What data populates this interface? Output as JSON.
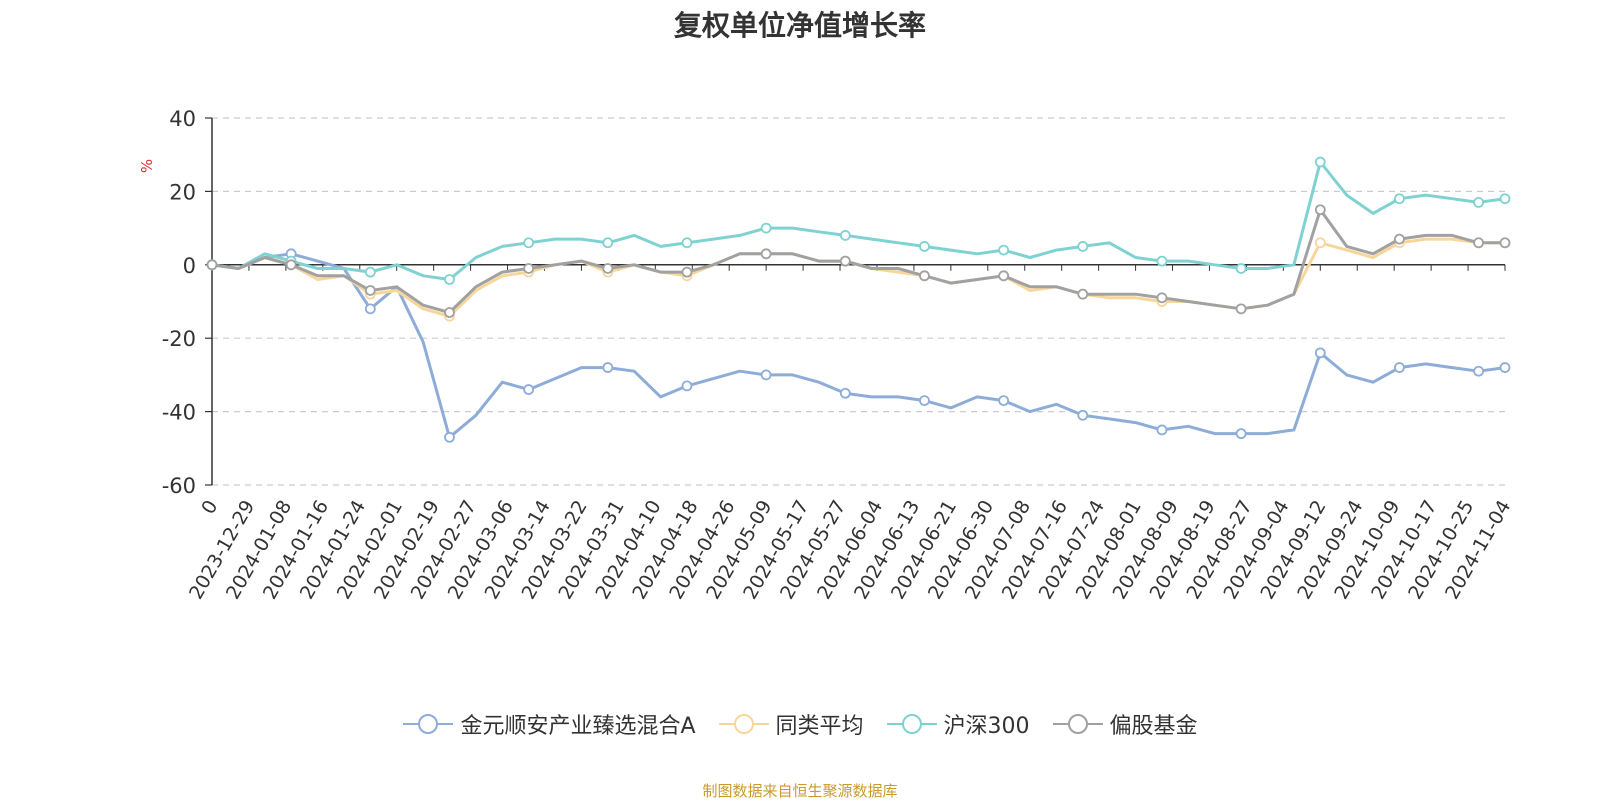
{
  "chart_data": {
    "type": "line",
    "title": "复权单位净值增长率",
    "ylabel": "%",
    "ylim": [
      -60,
      40
    ],
    "yticks": [
      40,
      20,
      0,
      -20,
      -40,
      -60
    ],
    "grid": true,
    "legend_position": "bottom-center",
    "x_tick_labels": [
      "0",
      "2023-12-29",
      "2024-01-08",
      "2024-01-16",
      "2024-01-24",
      "2024-02-01",
      "2024-02-19",
      "2024-02-27",
      "2024-03-06",
      "2024-03-14",
      "2024-03-22",
      "2024-03-31",
      "2024-04-10",
      "2024-04-18",
      "2024-04-26",
      "2024-05-09",
      "2024-05-17",
      "2024-05-27",
      "2024-06-04",
      "2024-06-13",
      "2024-06-21",
      "2024-06-30",
      "2024-07-08",
      "2024-07-16",
      "2024-07-24",
      "2024-08-01",
      "2024-08-09",
      "2024-08-19",
      "2024-08-27",
      "2024-09-04",
      "2024-09-12",
      "2024-09-24",
      "2024-10-09",
      "2024-10-17",
      "2024-10-25",
      "2024-11-04"
    ],
    "series": [
      {
        "name": "金元顺安产业臻选混合A",
        "color": "#8eacd8",
        "values": [
          0,
          -1,
          2,
          3,
          1,
          -1,
          -12,
          -6,
          -21,
          -47,
          -41,
          -32,
          -34,
          -31,
          -28,
          -28,
          -29,
          -36,
          -33,
          -31,
          -29,
          -30,
          -30,
          -32,
          -35,
          -36,
          -36,
          -37,
          -39,
          -36,
          -37,
          -40,
          -38,
          -41,
          -42,
          -43,
          -45,
          -44,
          -46,
          -46,
          -46,
          -45,
          -24,
          -30,
          -32,
          -28,
          -27,
          -28,
          -29,
          -28
        ]
      },
      {
        "name": "同类平均",
        "color": "#f8d69a",
        "values": [
          0,
          -1,
          2,
          0,
          -4,
          -3,
          -8,
          -7,
          -12,
          -14,
          -7,
          -3,
          -2,
          0,
          1,
          -2,
          0,
          -2,
          -3,
          0,
          3,
          3,
          3,
          1,
          1,
          -1,
          -2,
          -3,
          -5,
          -4,
          -3,
          -7,
          -6,
          -8,
          -9,
          -9,
          -10,
          -10,
          -11,
          -12,
          -11,
          -8,
          6,
          4,
          2,
          6,
          7,
          7,
          6,
          6
        ]
      },
      {
        "name": "沪深300",
        "color": "#7fd2d2",
        "values": [
          0,
          -1,
          3,
          1,
          -1,
          -1,
          -2,
          0,
          -3,
          -4,
          2,
          5,
          6,
          7,
          7,
          6,
          8,
          5,
          6,
          7,
          8,
          10,
          10,
          9,
          8,
          7,
          6,
          5,
          4,
          3,
          4,
          2,
          4,
          5,
          6,
          2,
          1,
          1,
          0,
          -1,
          -1,
          0,
          28,
          19,
          14,
          18,
          19,
          18,
          17,
          18
        ]
      },
      {
        "name": "偏股基金",
        "color": "#a1a1a1",
        "values": [
          0,
          -1,
          2,
          0,
          -3,
          -3,
          -7,
          -6,
          -11,
          -13,
          -6,
          -2,
          -1,
          0,
          1,
          -1,
          0,
          -2,
          -2,
          0,
          3,
          3,
          3,
          1,
          1,
          -1,
          -1,
          -3,
          -5,
          -4,
          -3,
          -6,
          -6,
          -8,
          -8,
          -8,
          -9,
          -10,
          -11,
          -12,
          -11,
          -8,
          15,
          5,
          3,
          7,
          8,
          8,
          6,
          6
        ]
      }
    ]
  },
  "legend": {
    "items": [
      "金元顺安产业臻选混合A",
      "同类平均",
      "沪深300",
      "偏股基金"
    ]
  },
  "source_note": "制图数据来自恒生聚源数据库"
}
